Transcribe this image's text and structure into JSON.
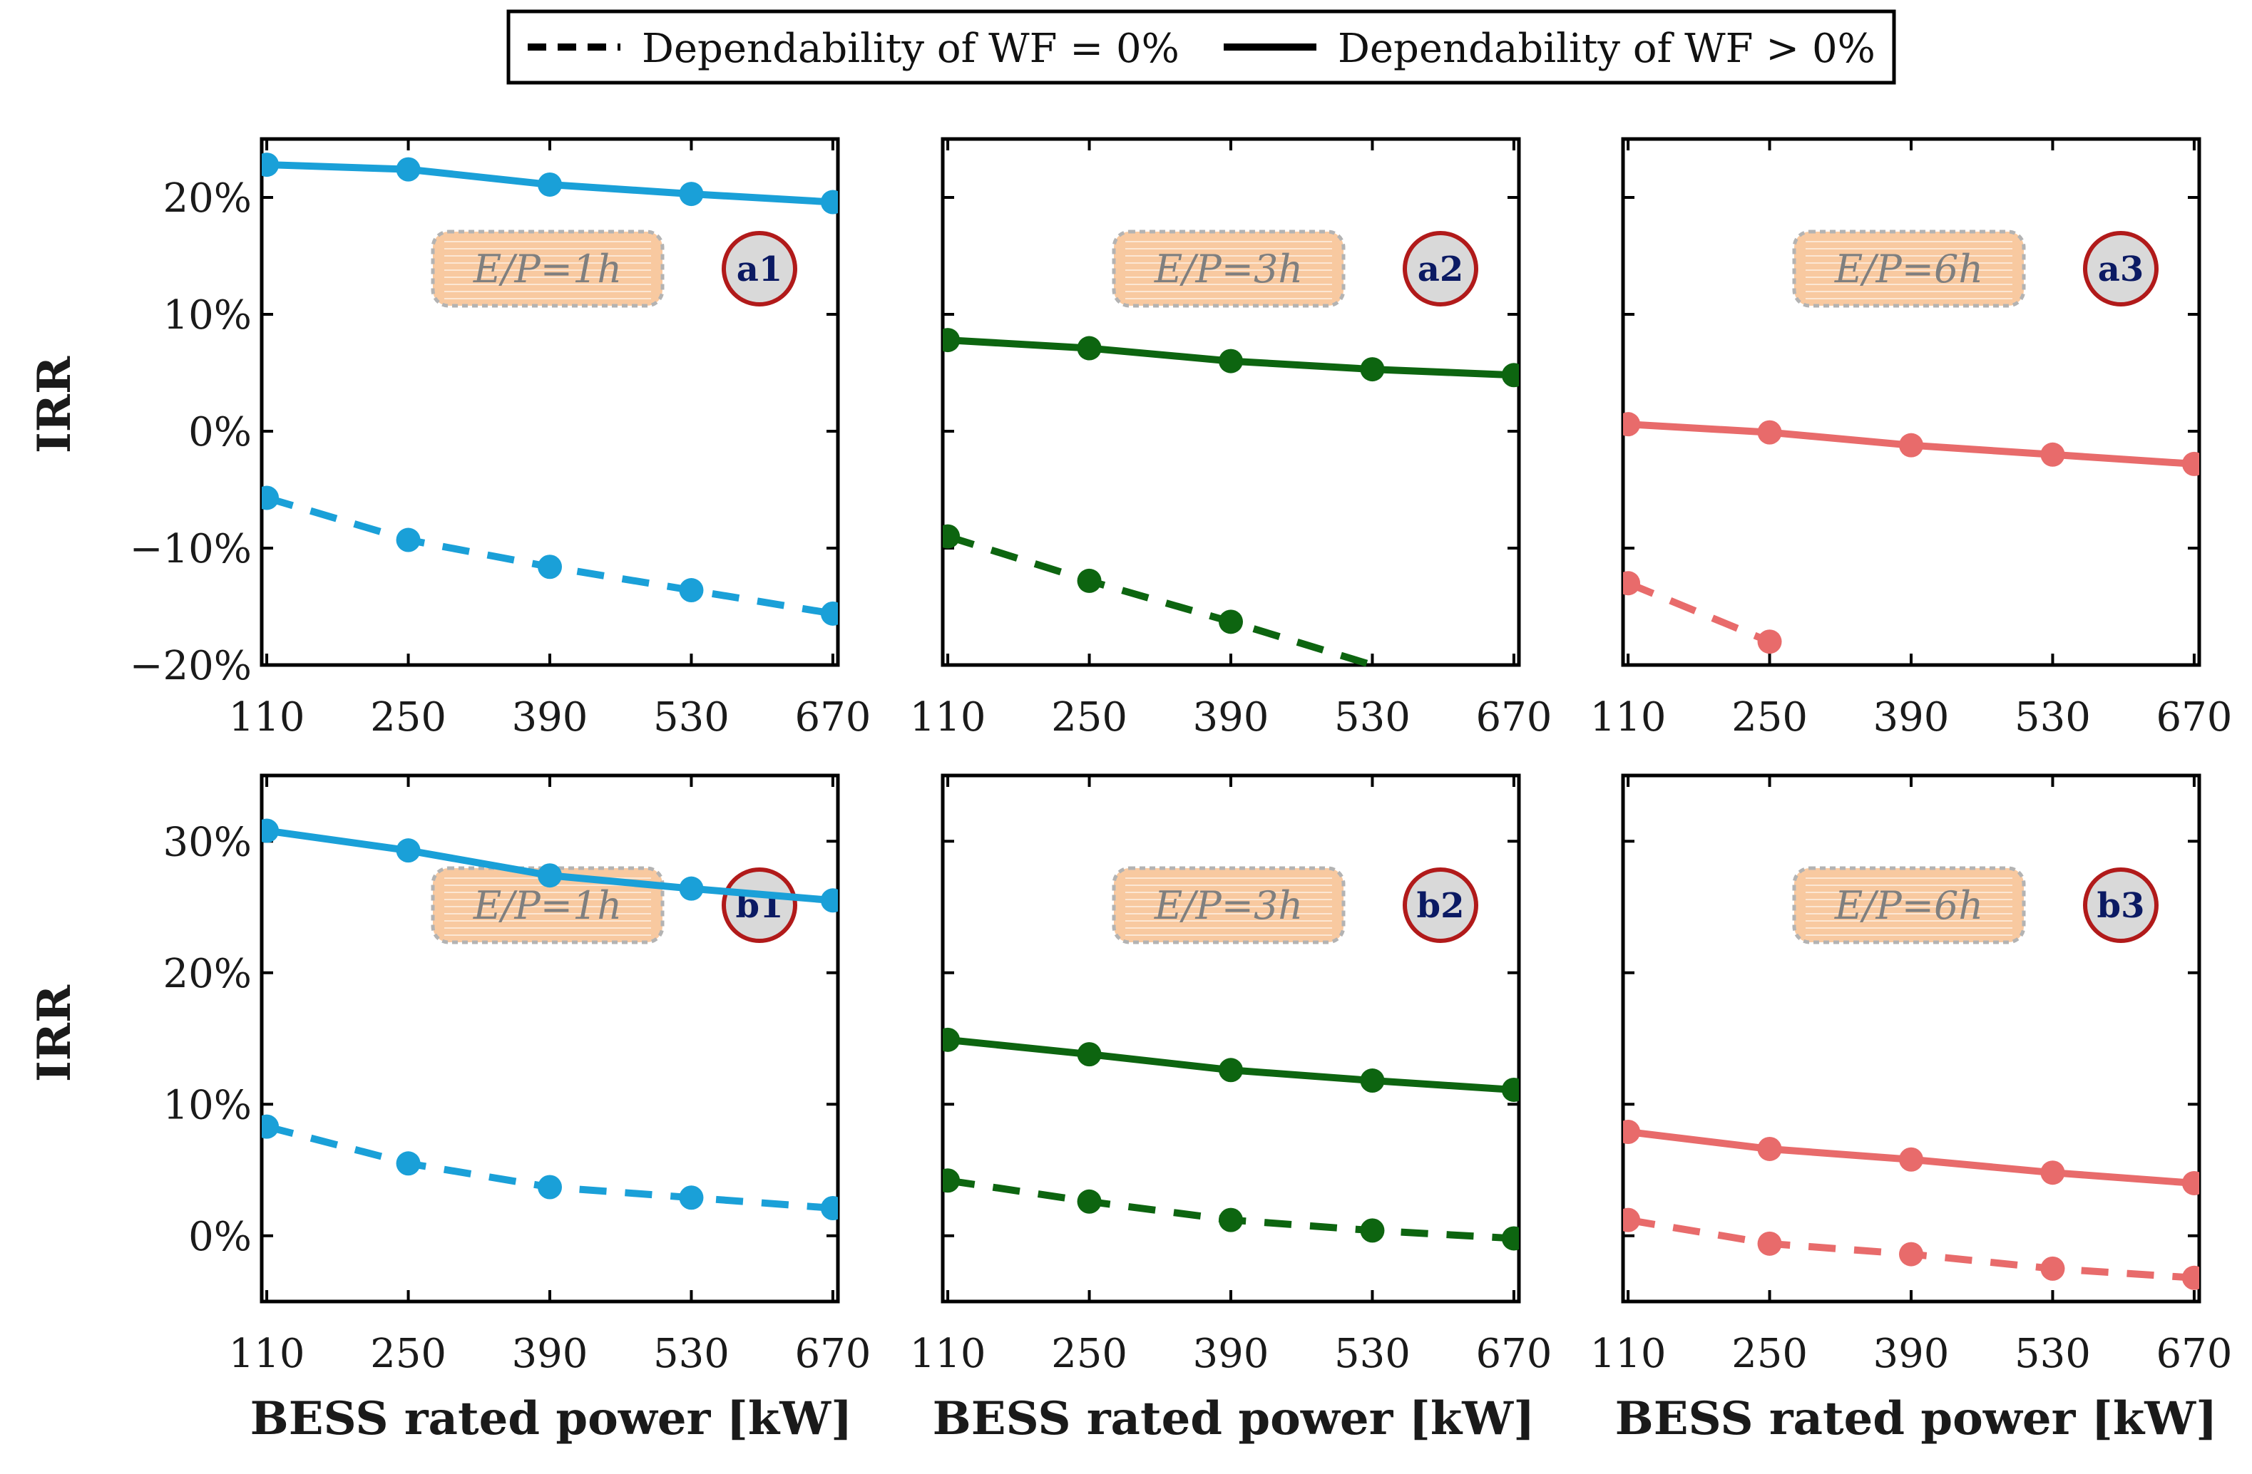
{
  "legend": {
    "dashed_label": "Dependability of WF = 0%",
    "solid_label": "Dependability of WF > 0%"
  },
  "colors": {
    "blue": "#1aa0d8",
    "green": "#0d6510",
    "red": "#e86b6b",
    "badge_border": "#b11a1a",
    "badge_fill": "#d9d9d9",
    "ep_fill": "#f8c9a0",
    "ep_border": "#b3b3b3"
  },
  "x_label": "BESS rated power [kW]",
  "chart_data": [
    {
      "type": "line",
      "panel": "a1",
      "row": 0,
      "col": 0,
      "color": "blue",
      "ep_label": "E/P=1h",
      "ylabel": "IRR",
      "categories": [
        110,
        250,
        390,
        530,
        670
      ],
      "ylim": [
        -20,
        25
      ],
      "yticks": [
        -20,
        -10,
        0,
        10,
        20
      ],
      "ytick_labels": [
        "−20%",
        "−10%",
        "0%",
        "10%",
        "20%"
      ],
      "series": [
        {
          "name": "Dependability of WF > 0%",
          "style": "solid",
          "values": [
            22.8,
            22.4,
            21.1,
            20.3,
            19.6
          ]
        },
        {
          "name": "Dependability of WF = 0%",
          "style": "dashed",
          "values": [
            -5.7,
            -9.3,
            -11.6,
            -13.6,
            -15.6
          ]
        }
      ]
    },
    {
      "type": "line",
      "panel": "a2",
      "row": 0,
      "col": 1,
      "color": "green",
      "ep_label": "E/P=3h",
      "categories": [
        110,
        250,
        390,
        530,
        670
      ],
      "ylim": [
        -20,
        25
      ],
      "yticks": [
        -20,
        -10,
        0,
        10,
        20
      ],
      "ytick_labels": [],
      "series": [
        {
          "name": "Dependability of WF > 0%",
          "style": "solid",
          "values": [
            7.8,
            7.1,
            6.0,
            5.3,
            4.8
          ]
        },
        {
          "name": "Dependability of WF = 0%",
          "style": "dashed",
          "values": [
            -9.0,
            -12.8,
            -16.3,
            null,
            null
          ],
          "tail": [
            530,
            -20
          ]
        }
      ]
    },
    {
      "type": "line",
      "panel": "a3",
      "row": 0,
      "col": 2,
      "color": "red",
      "ep_label": "E/P=6h",
      "categories": [
        110,
        250,
        390,
        530,
        670
      ],
      "ylim": [
        -20,
        25
      ],
      "yticks": [
        -20,
        -10,
        0,
        10,
        20
      ],
      "ytick_labels": [],
      "series": [
        {
          "name": "Dependability of WF > 0%",
          "style": "solid",
          "values": [
            0.6,
            -0.1,
            -1.2,
            -2.0,
            -2.8
          ]
        },
        {
          "name": "Dependability of WF = 0%",
          "style": "dashed",
          "values": [
            -13.0,
            -18.0,
            null,
            null,
            null
          ]
        }
      ]
    },
    {
      "type": "line",
      "panel": "b1",
      "row": 1,
      "col": 0,
      "color": "blue",
      "ep_label": "E/P=1h",
      "ylabel": "IRR",
      "categories": [
        110,
        250,
        390,
        530,
        670
      ],
      "ylim": [
        -5,
        35
      ],
      "yticks": [
        0,
        10,
        20,
        30
      ],
      "ytick_labels": [
        "0%",
        "10%",
        "20%",
        "30%"
      ],
      "series": [
        {
          "name": "Dependability of WF > 0%",
          "style": "solid",
          "values": [
            30.8,
            29.3,
            27.4,
            26.4,
            25.5
          ]
        },
        {
          "name": "Dependability of WF = 0%",
          "style": "dashed",
          "values": [
            8.3,
            5.5,
            3.7,
            2.9,
            2.1
          ]
        }
      ]
    },
    {
      "type": "line",
      "panel": "b2",
      "row": 1,
      "col": 1,
      "color": "green",
      "ep_label": "E/P=3h",
      "categories": [
        110,
        250,
        390,
        530,
        670
      ],
      "ylim": [
        -5,
        35
      ],
      "yticks": [
        0,
        10,
        20,
        30
      ],
      "ytick_labels": [],
      "series": [
        {
          "name": "Dependability of WF > 0%",
          "style": "solid",
          "values": [
            14.9,
            13.8,
            12.6,
            11.8,
            11.1
          ]
        },
        {
          "name": "Dependability of WF = 0%",
          "style": "dashed",
          "values": [
            4.2,
            2.6,
            1.2,
            0.4,
            -0.2
          ]
        }
      ]
    },
    {
      "type": "line",
      "panel": "b3",
      "row": 1,
      "col": 2,
      "color": "red",
      "ep_label": "E/P=6h",
      "categories": [
        110,
        250,
        390,
        530,
        670
      ],
      "ylim": [
        -5,
        35
      ],
      "yticks": [
        0,
        10,
        20,
        30
      ],
      "ytick_labels": [],
      "series": [
        {
          "name": "Dependability of WF > 0%",
          "style": "solid",
          "values": [
            7.9,
            6.6,
            5.8,
            4.8,
            4.0
          ]
        },
        {
          "name": "Dependability of WF = 0%",
          "style": "dashed",
          "values": [
            1.2,
            -0.6,
            -1.4,
            -2.5,
            -3.2
          ]
        }
      ]
    }
  ]
}
